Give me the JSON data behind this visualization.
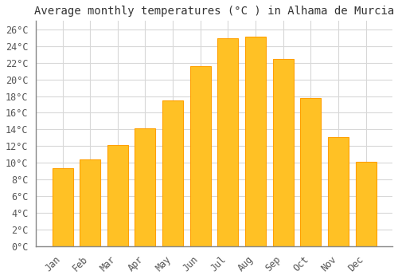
{
  "title": "Average monthly temperatures (°C ) in Alhama de Murcia",
  "months": [
    "Jan",
    "Feb",
    "Mar",
    "Apr",
    "May",
    "Jun",
    "Jul",
    "Aug",
    "Sep",
    "Oct",
    "Nov",
    "Dec"
  ],
  "values": [
    9.4,
    10.4,
    12.1,
    14.1,
    17.5,
    21.6,
    24.9,
    25.1,
    22.4,
    17.8,
    13.1,
    10.1
  ],
  "bar_color": "#FFC125",
  "bar_edge_color": "#FFA000",
  "background_color": "#FFFFFF",
  "plot_bg_color": "#FFFFFF",
  "grid_color": "#D8D8D8",
  "ytick_step": 2,
  "ymin": 0,
  "ymax": 27,
  "title_fontsize": 10,
  "tick_fontsize": 8.5,
  "font_family": "monospace",
  "bar_width": 0.75
}
